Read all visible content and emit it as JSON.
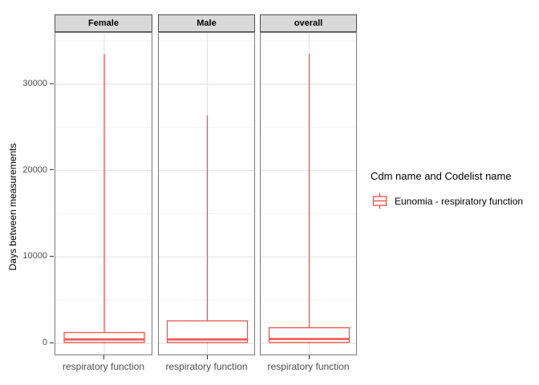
{
  "figure": {
    "background": "#ffffff",
    "accent_color": "#f1544b",
    "strip_background": "#d9d9d9",
    "panel_border": "#7a7a7a",
    "major_grid_color": "#e4e4e4",
    "minor_grid_color": "#f2f2f2"
  },
  "legend": {
    "title": "Cdm name and Codelist name",
    "items": [
      {
        "icon": "boxplot-key-icon",
        "label": "Eunomia - respiratory function",
        "color": "#f1544b"
      }
    ]
  },
  "chart_data": {
    "type": "boxplot",
    "title": "",
    "xlabel": "",
    "ylabel": "Days between measurements",
    "ylim": [
      0,
      35940
    ],
    "y_major_ticks": [
      0,
      10000,
      20000,
      30000
    ],
    "y_tick_labels": [
      "0",
      "10000",
      "20000",
      "30000"
    ],
    "y_minor_gridlines": [
      5000,
      15000,
      25000,
      35000
    ],
    "grid": true,
    "legend_position": "right",
    "series_name": "Eunomia - respiratory function",
    "facets": [
      {
        "label": "Female",
        "category": "respiratory function",
        "stats": {
          "min": 0,
          "q1": 100,
          "median": 450,
          "q3": 1250,
          "max": 33500
        }
      },
      {
        "label": "Male",
        "category": "respiratory function",
        "stats": {
          "min": 0,
          "q1": 100,
          "median": 450,
          "q3": 2600,
          "max": 26400
        }
      },
      {
        "label": "overall",
        "category": "respiratory function",
        "stats": {
          "min": 0,
          "q1": 100,
          "median": 500,
          "q3": 1800,
          "max": 33500
        }
      }
    ]
  }
}
